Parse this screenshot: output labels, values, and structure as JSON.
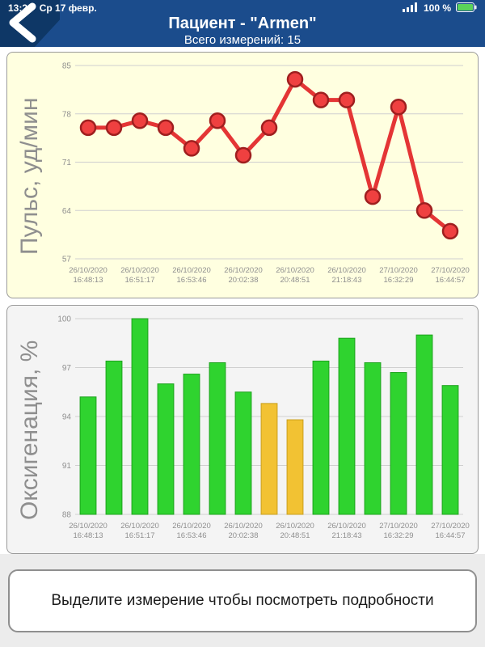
{
  "status_bar": {
    "time": "13:23",
    "date": "Ср 17 февр.",
    "battery_percent": "100 %"
  },
  "header": {
    "title": "Пациент - \"Armen\"",
    "subtitle": "Всего измерений: 15"
  },
  "footer": {
    "hint": "Выделите измерение чтобы посмотреть подробности"
  },
  "chart_data": [
    {
      "type": "line",
      "title": "",
      "xlabel": "",
      "ylabel": "Пульс, уд/мин",
      "ylim": [
        57,
        85
      ],
      "yticks": [
        57,
        64,
        71,
        78,
        85
      ],
      "grid": "horizontal",
      "legend": "none",
      "values": [
        76,
        76,
        77,
        76,
        73,
        77,
        72,
        76,
        83,
        80,
        80,
        66,
        79,
        64,
        61
      ],
      "x_tick_positions": [
        0,
        2,
        4,
        6,
        8,
        10,
        12,
        14
      ],
      "x_tick_labels": [
        "26/10/2020 16:48:13",
        "26/10/2020 16:51:17",
        "26/10/2020 16:53:46",
        "26/10/2020 20:02:38",
        "26/10/2020 20:48:51",
        "26/10/2020 21:18:43",
        "27/10/2020 16:32:29",
        "27/10/2020 16:44:57"
      ],
      "colors": {
        "line": "#e43535",
        "marker_fill": "#ef4040",
        "marker_stroke": "#9f1f1f",
        "bg": "#ffffe0"
      }
    },
    {
      "type": "bar",
      "title": "",
      "xlabel": "",
      "ylabel": "Оксигенация, %",
      "ylim": [
        88,
        100
      ],
      "yticks": [
        88,
        91,
        94,
        97,
        100
      ],
      "grid": "horizontal",
      "legend": "none",
      "values": [
        95.2,
        97.4,
        100,
        96.0,
        96.6,
        97.3,
        95.5,
        94.8,
        93.8,
        97.4,
        98.8,
        97.3,
        96.7,
        99.0,
        95.9
      ],
      "bar_color_keys": [
        "green",
        "green",
        "green",
        "green",
        "green",
        "green",
        "green",
        "yellow",
        "yellow",
        "green",
        "green",
        "green",
        "green",
        "green",
        "green"
      ],
      "palette": {
        "green": {
          "fill": "#2fd32f",
          "stroke": "#1da21d"
        },
        "yellow": {
          "fill": "#f2c233",
          "stroke": "#c89e1d"
        }
      },
      "x_tick_positions": [
        0,
        2,
        4,
        6,
        8,
        10,
        12,
        14
      ],
      "x_tick_labels": [
        "26/10/2020 16:48:13",
        "26/10/2020 16:51:17",
        "26/10/2020 16:53:46",
        "26/10/2020 20:02:38",
        "26/10/2020 20:48:51",
        "26/10/2020 21:18:43",
        "27/10/2020 16:32:29",
        "27/10/2020 16:44:57"
      ],
      "colors": {
        "bg": "#f4f4f4"
      }
    }
  ]
}
